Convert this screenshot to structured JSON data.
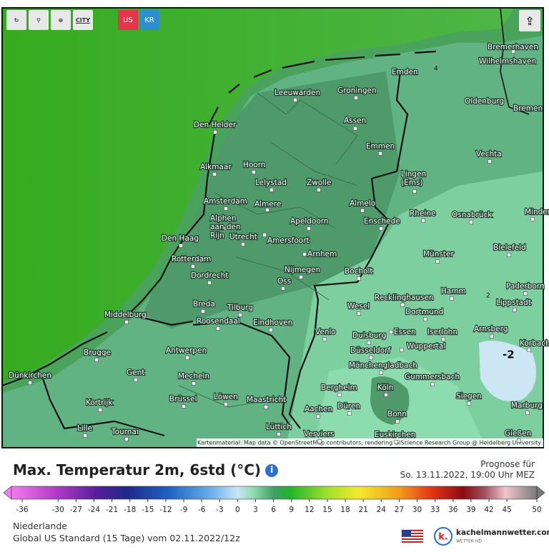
{
  "toolbar": {
    "city": "CITY",
    "us": "US",
    "kr": "KR"
  },
  "map": {
    "attribution": "Kartenmaterial: Map data © OpenStreetMap contributors, rendering GIScience Research Group @ Heidelberg University",
    "isoline_labels": [
      "-2",
      "2",
      "4"
    ],
    "cities": [
      "Bremerhaven",
      "Wilhelmshaven",
      "Emden",
      "Oldenburg",
      "Bremen",
      "Leeuwarden",
      "Groningen",
      "Den Helder",
      "Assen",
      "Emmen",
      "Vechta",
      "Alkmaar",
      "Hoorn",
      [
        "Lingen",
        "(Ems)"
      ],
      "Lelystad",
      "Zwolle",
      "Amsterdam",
      "Almere",
      "Almelo",
      "Rheine",
      "Osnabrück",
      "Minden",
      [
        "Alphen",
        "aan den",
        "Rijn"
      ],
      "Den Haag",
      "Utrecht",
      "Amersfoort",
      "Apeldoorn",
      "Enschede",
      "Arnhem",
      "Münster",
      "Bielefeld",
      "Rotterdam",
      "Nijmegen",
      "Bocholt",
      "Dordrecht",
      "Oss",
      "Paderborn",
      "Hamm",
      "Recklinghausen",
      "Lippstadt",
      "Breda",
      "Tilburg",
      "Wesel",
      "Middelburg",
      "Dortmund",
      "Roosendaal",
      "Eindhoven",
      "Arnsberg",
      "Venlo",
      "Duisburg",
      "Essen",
      "Iserlohn",
      "Korbach",
      "Brugge",
      "Antwerpen",
      "Düsseldorf",
      "Wuppertal",
      "Mönchengladbach",
      "Dünkirchen",
      "Gent",
      "Mecheln",
      "Gummersbach",
      "Bergheim",
      "Köln",
      "Siegen",
      "Kortrijk",
      "Brüssel",
      "Löwen",
      "Maastricht",
      "Aachen",
      "Düren",
      "Marburg",
      "Bonn",
      "Lille",
      "Tournai",
      "Lüttich",
      "Verviers",
      "Euskirchen",
      "Gießen"
    ]
  },
  "header": {
    "title": "Max. Temperatur 2m, 6std (°C)",
    "forecast_label": "Prognose für",
    "forecast_time": "So. 13.11.2022, 19:00 Uhr MEZ"
  },
  "scale": {
    "ticks": [
      -36,
      -30,
      -27,
      -24,
      -21,
      -18,
      -15,
      -12,
      -9,
      -6,
      -3,
      0,
      3,
      6,
      9,
      12,
      15,
      18,
      21,
      24,
      27,
      30,
      33,
      36,
      39,
      42,
      45,
      50
    ]
  },
  "footer": {
    "region": "Niederlande",
    "model": "Global US Standard (15 Tage) vom 02.11.2022/12z",
    "logo_letter": "k.",
    "logo": "kachelmannwetter.com",
    "logo_sub": "WETTER HD"
  }
}
